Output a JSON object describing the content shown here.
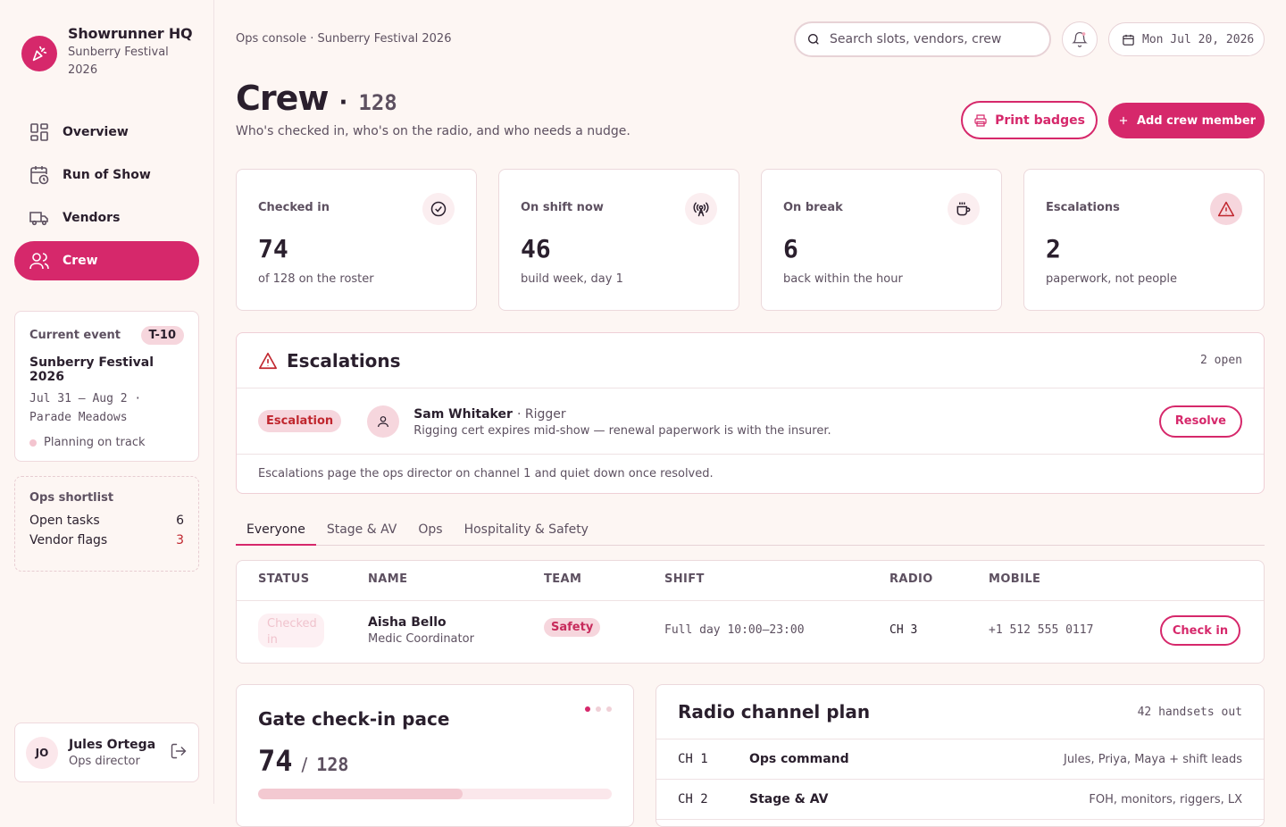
{
  "brand": {
    "title": "Showrunner HQ",
    "subtitle": "Sunberry Festival 2026"
  },
  "nav": [
    {
      "label": "Overview",
      "icon": "grid-icon"
    },
    {
      "label": "Run of Show",
      "icon": "calendar-clock-icon"
    },
    {
      "label": "Vendors",
      "icon": "truck-icon"
    },
    {
      "label": "Crew",
      "icon": "users-icon",
      "active": true
    }
  ],
  "event_card": {
    "label": "Current event",
    "badge": "T-10",
    "name": "Sunberry Festival 2026",
    "dates": "Jul 31 – Aug 2 · Parade Meadows",
    "status": "Planning on track"
  },
  "shortlist": {
    "title": "Ops shortlist",
    "items": [
      {
        "label": "Open tasks",
        "value": "6"
      },
      {
        "label": "Vendor flags",
        "value": "3"
      }
    ]
  },
  "user": {
    "initials": "JO",
    "name": "Jules Ortega",
    "role": "Ops director"
  },
  "header": {
    "breadcrumb": "Ops console · Sunberry Festival 2026",
    "search_placeholder": "Search slots, vendors, crew",
    "date": "Mon Jul 20, 2026"
  },
  "page": {
    "title": "Crew",
    "dot": "·",
    "count": "128",
    "subtitle": "Who's checked in, who's on the radio, and who needs a nudge.",
    "print_label": "Print badges",
    "add_label": "Add crew member"
  },
  "stats": [
    {
      "label": "Checked in",
      "value": "74",
      "sub": "of 128 on the roster",
      "icon": "check-circle-icon"
    },
    {
      "label": "On shift now",
      "value": "46",
      "sub": "build week, day 1",
      "icon": "radio-tower-icon"
    },
    {
      "label": "On break",
      "value": "6",
      "sub": "back within the hour",
      "icon": "coffee-icon"
    },
    {
      "label": "Escalations",
      "value": "2",
      "sub": "paperwork, not people",
      "icon": "warning-icon"
    }
  ],
  "escalations": {
    "title": "Escalations",
    "count": "2 open",
    "item": {
      "badge": "Escalation",
      "name": "Sam Whitaker",
      "role": "· Rigger",
      "desc": "Rigging cert expires mid-show — renewal paperwork is with the insurer.",
      "action": "Resolve"
    },
    "footer": "Escalations page the ops director on channel 1 and quiet down once resolved."
  },
  "tabs": [
    "Everyone",
    "Stage & AV",
    "Ops",
    "Hospitality & Safety"
  ],
  "table": {
    "headers": [
      "STATUS",
      "NAME",
      "TEAM",
      "SHIFT",
      "RADIO",
      "MOBILE"
    ],
    "rows": [
      {
        "status": "Checked in",
        "name": "Aisha Bello",
        "role": "Medic Coordinator",
        "team": "Safety",
        "shift": "Full day 10:00–23:00",
        "radio": "CH 3",
        "mobile": "+1 512 555 0117",
        "action": "Check in"
      }
    ]
  },
  "pace": {
    "title": "Gate check-in pace",
    "value": "74",
    "slash": "/",
    "total": "128",
    "progress": 0.578
  },
  "radio": {
    "title": "Radio channel plan",
    "meta": "42 handsets out",
    "rows": [
      {
        "ch": "CH 1",
        "name": "Ops command",
        "who": "Jules, Priya, Maya + shift leads"
      },
      {
        "ch": "CH 2",
        "name": "Stage & AV",
        "who": "FOH, monitors, riggers, LX"
      }
    ]
  },
  "colors": {
    "accent": "#d6286b",
    "danger": "#c0262e",
    "bg": "#fdf6f3"
  }
}
